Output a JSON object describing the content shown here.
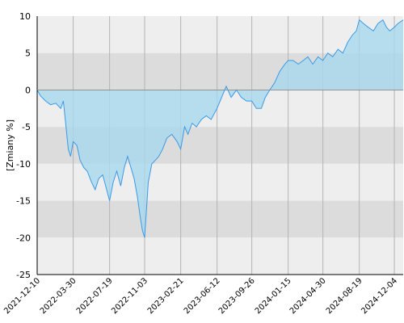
{
  "chart_data": {
    "type": "area",
    "title": "",
    "xlabel": "",
    "ylabel": "[Zmiany %]",
    "ylim": [
      -25,
      10
    ],
    "yticks": [
      10,
      5,
      0,
      -5,
      -10,
      -15,
      -20,
      -25
    ],
    "xlim": [
      "2021-12-10",
      "2024-12-31"
    ],
    "xticks": [
      "2021-12-10",
      "2022-03-30",
      "2022-07-19",
      "2022-11-03",
      "2023-02-21",
      "2023-06-12",
      "2023-09-26",
      "2024-01-15",
      "2024-04-30",
      "2024-08-19",
      "2024-12-04"
    ],
    "grid": true,
    "legend": "none",
    "colors": {
      "line": "#3a9ae6",
      "fill": "#a8d8ee",
      "band_light": "#eeeeee",
      "band_dark": "#dcdcdc",
      "gridline": "#b4b4b4",
      "axis": "#000000"
    },
    "series": [
      {
        "x": [
          "2021-12-10",
          "2021-12-20",
          "2022-01-05",
          "2022-01-20",
          "2022-02-05",
          "2022-02-20",
          "2022-02-28",
          "2022-03-08",
          "2022-03-15",
          "2022-03-22",
          "2022-03-30",
          "2022-04-10",
          "2022-04-20",
          "2022-05-01",
          "2022-05-12",
          "2022-05-25",
          "2022-06-05",
          "2022-06-16",
          "2022-06-28",
          "2022-07-10",
          "2022-07-19",
          "2022-07-30",
          "2022-08-10",
          "2022-08-22",
          "2022-09-02",
          "2022-09-12",
          "2022-09-22",
          "2022-10-02",
          "2022-10-12",
          "2022-10-20",
          "2022-10-27",
          "2022-11-03",
          "2022-11-14",
          "2022-11-25",
          "2022-12-06",
          "2022-12-16",
          "2022-12-28",
          "2023-01-10",
          "2023-01-25",
          "2023-02-10",
          "2023-02-21",
          "2023-03-05",
          "2023-03-15",
          "2023-03-28",
          "2023-04-10",
          "2023-04-25",
          "2023-05-10",
          "2023-05-25",
          "2023-06-12",
          "2023-06-26",
          "2023-07-10",
          "2023-07-25",
          "2023-08-10",
          "2023-08-25",
          "2023-09-10",
          "2023-09-26",
          "2023-10-10",
          "2023-10-25",
          "2023-11-06",
          "2023-11-20",
          "2023-12-05",
          "2023-12-20",
          "2024-01-05",
          "2024-01-15",
          "2024-01-30",
          "2024-02-15",
          "2024-03-01",
          "2024-03-15",
          "2024-03-30",
          "2024-04-15",
          "2024-04-30",
          "2024-05-15",
          "2024-05-30",
          "2024-06-15",
          "2024-06-30",
          "2024-07-15",
          "2024-07-30",
          "2024-08-10",
          "2024-08-19",
          "2024-09-01",
          "2024-09-15",
          "2024-10-01",
          "2024-10-15",
          "2024-10-30",
          "2024-11-10",
          "2024-11-20",
          "2024-12-04",
          "2024-12-15",
          "2024-12-31"
        ],
        "values": [
          0,
          -0.8,
          -1.5,
          -2.0,
          -1.8,
          -2.5,
          -1.5,
          -5.0,
          -8.0,
          -9.0,
          -7.0,
          -7.5,
          -9.5,
          -10.5,
          -11.0,
          -12.5,
          -13.5,
          -12.0,
          -11.5,
          -13.5,
          -15.0,
          -12.5,
          -11.0,
          -13.0,
          -10.5,
          -9.0,
          -10.5,
          -12.0,
          -14.5,
          -17.0,
          -19.0,
          -20.0,
          -12.5,
          -10.0,
          -9.5,
          -9.0,
          -8.0,
          -6.5,
          -6.0,
          -7.0,
          -8.0,
          -5.0,
          -6.0,
          -4.5,
          -5.0,
          -4.0,
          -3.5,
          -4.0,
          -2.5,
          -1.0,
          0.5,
          -1.0,
          0.0,
          -1.0,
          -1.5,
          -1.5,
          -2.5,
          -2.5,
          -1.0,
          0.0,
          1.0,
          2.5,
          3.5,
          4.0,
          4.0,
          3.5,
          4.0,
          4.5,
          3.5,
          4.5,
          4.0,
          5.0,
          4.5,
          5.5,
          5.0,
          6.5,
          7.5,
          8.0,
          9.5,
          9.0,
          8.5,
          8.0,
          9.0,
          9.5,
          8.5,
          8.0,
          8.5,
          9.0,
          9.5
        ]
      }
    ]
  }
}
